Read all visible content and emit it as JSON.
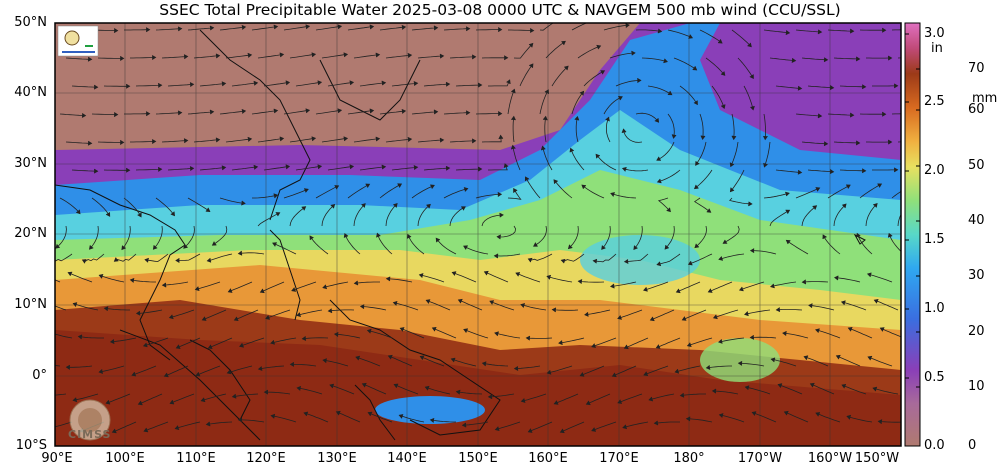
{
  "title": "SSEC Total Precipitable Water  2025-03-08 0000 UTC & NAVGEM 500 mb wind (CCU/SSL)",
  "lat_labels": [
    "50°N",
    "40°N",
    "30°N",
    "20°N",
    "10°N",
    "0°",
    "10°S"
  ],
  "lon_labels": [
    "90°E",
    "100°E",
    "110°E",
    "120°E",
    "130°E",
    "140°E",
    "150°E",
    "160°E",
    "170°E",
    "180°",
    "170°W",
    "160°W",
    "150°W"
  ],
  "colorbar": {
    "inch_unit": "in",
    "mm_unit": "mm",
    "inch_ticks": [
      "3.0",
      "2.5",
      "2.0",
      "1.5",
      "1.0",
      "0.5",
      "0.0"
    ],
    "mm_ticks": [
      "70",
      "60",
      "50",
      "40",
      "30",
      "20",
      "10",
      "0"
    ]
  },
  "logo_text": "CIMSS",
  "colors": {
    "dry_low": "#b07a70",
    "purple": "#8a3fb8",
    "blue": "#2f8fe8",
    "cyan": "#58d0e0",
    "green": "#8fe07a",
    "yellow": "#e8d860",
    "orange": "#e89838",
    "brown": "#9c3a18"
  }
}
